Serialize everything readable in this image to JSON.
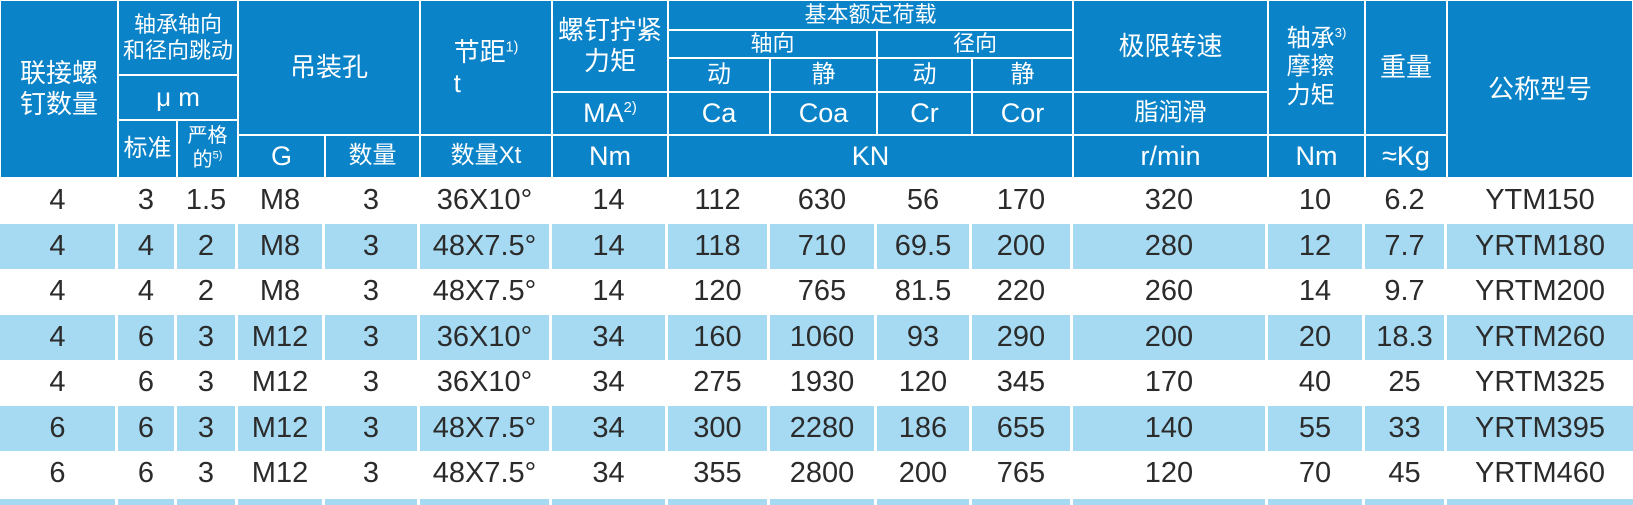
{
  "table": {
    "header": {
      "connect_screw_qty": {
        "line1": "联接螺",
        "line2": "钉数量"
      },
      "runout": {
        "line1": "轴承轴向",
        "line2": "和径向跳动"
      },
      "runout_unit": "μ m",
      "standard": "标准",
      "strict": {
        "line1": "严格",
        "line2": "的",
        "sup": "5)"
      },
      "lifting_hole": "吊装孔",
      "g": "G",
      "qty": "数量",
      "pitch": {
        "label": "节距",
        "sup": "1)",
        "sub": "t"
      },
      "qty_xt": "数量Xt",
      "screw_torque": {
        "line1": "螺钉拧紧",
        "line2": "力矩"
      },
      "ma": {
        "label": "MA",
        "sup": "2)"
      },
      "ma_unit": "Nm",
      "basic_load": "基本额定荷载",
      "axial": {
        "label": "轴向",
        "dynamic": "动",
        "static": "静",
        "ca": "Ca",
        "coa": "Coa"
      },
      "radial": {
        "label": "径向",
        "dynamic": "动",
        "static": "静",
        "cr": "Cr",
        "cor": "Cor"
      },
      "load_unit": "KN",
      "limit_speed": "极限转速",
      "grease": "脂润滑",
      "speed_unit": "r/min",
      "friction": {
        "label": "轴承",
        "sup": "3)",
        "line2": "摩擦",
        "line3": "力矩"
      },
      "friction_unit": "Nm",
      "weight": "重量",
      "weight_unit": "≈Kg",
      "model": "公称型号"
    },
    "rows": [
      [
        "4",
        "3",
        "1.5",
        "M8",
        "3",
        "36X10°",
        "14",
        "112",
        "630",
        "56",
        "170",
        "320",
        "10",
        "6.2",
        "YTM150"
      ],
      [
        "4",
        "4",
        "2",
        "M8",
        "3",
        "48X7.5°",
        "14",
        "118",
        "710",
        "69.5",
        "200",
        "280",
        "12",
        "7.7",
        "YRTM180"
      ],
      [
        "4",
        "4",
        "2",
        "M8",
        "3",
        "48X7.5°",
        "14",
        "120",
        "765",
        "81.5",
        "220",
        "260",
        "14",
        "9.7",
        "YRTM200"
      ],
      [
        "4",
        "6",
        "3",
        "M12",
        "3",
        "36X10°",
        "34",
        "160",
        "1060",
        "93",
        "290",
        "200",
        "20",
        "18.3",
        "YRTM260"
      ],
      [
        "4",
        "6",
        "3",
        "M12",
        "3",
        "36X10°",
        "34",
        "275",
        "1930",
        "120",
        "345",
        "170",
        "40",
        "25",
        "YRTM325"
      ],
      [
        "6",
        "6",
        "3",
        "M12",
        "3",
        "48X7.5°",
        "34",
        "300",
        "2280",
        "186",
        "655",
        "140",
        "55",
        "33",
        "YRTM395"
      ],
      [
        "6",
        "6",
        "3",
        "M12",
        "3",
        "48X7.5°",
        "34",
        "355",
        "2800",
        "200",
        "765",
        "120",
        "70",
        "45",
        "YRTM460"
      ]
    ]
  },
  "colors": {
    "header_blue": "#0a83c8",
    "row_alt_blue": "#a6daf2",
    "text": "#2b2b2b",
    "header_text": "#ffffff"
  }
}
